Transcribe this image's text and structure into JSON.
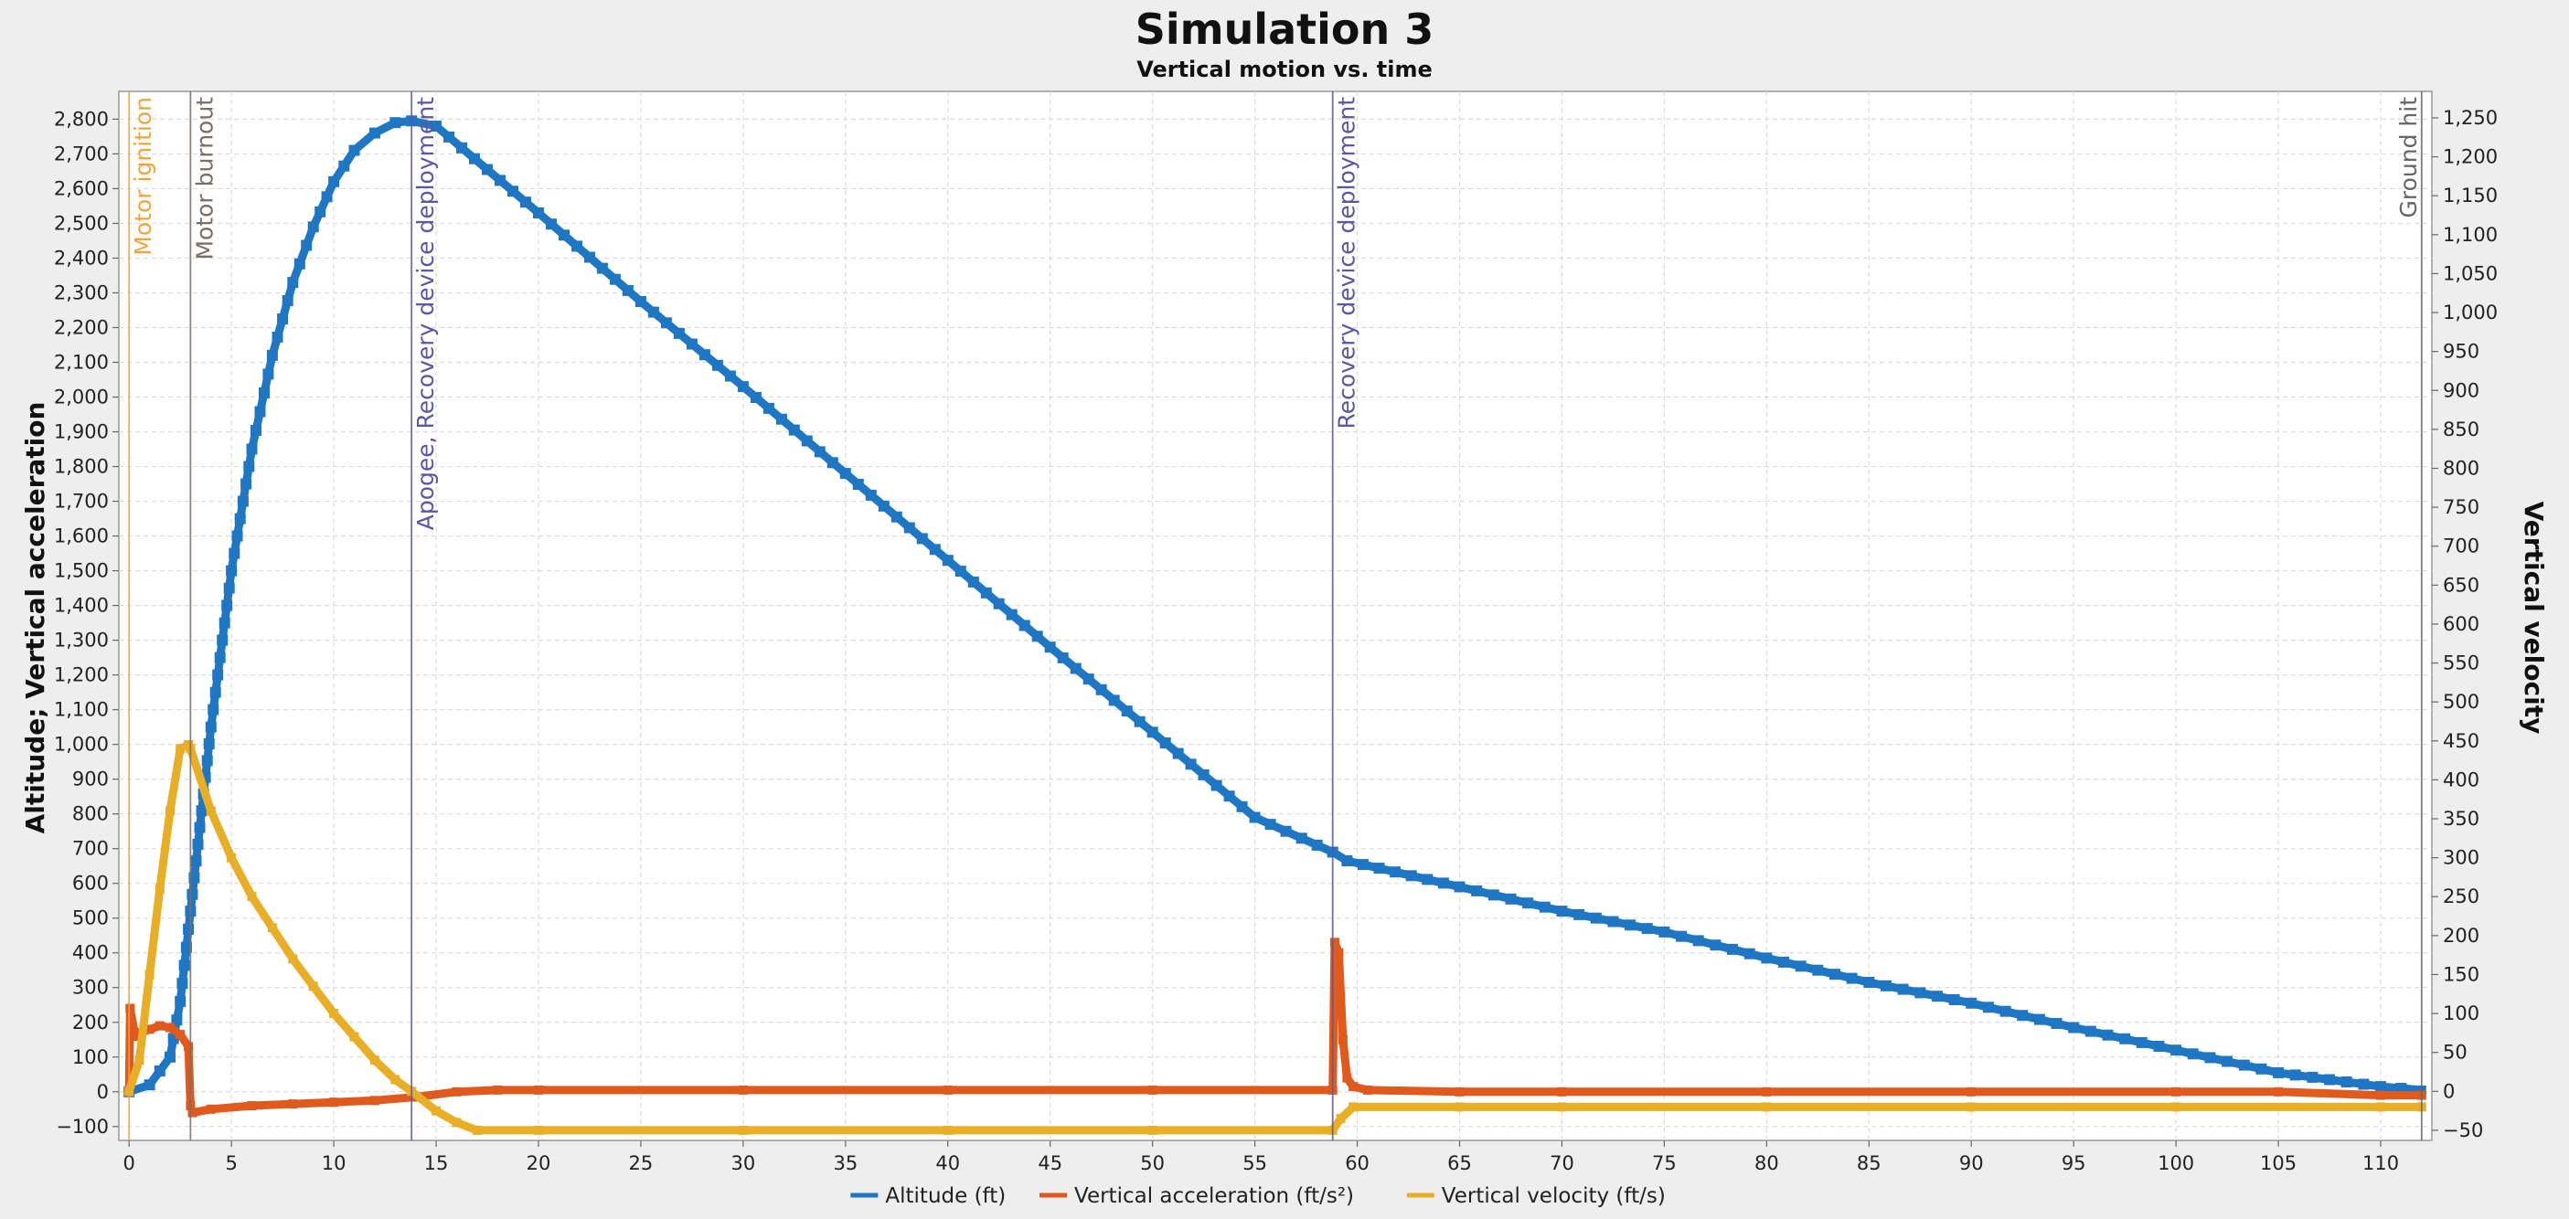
{
  "chart_data": {
    "type": "line",
    "title": "Simulation 3",
    "subtitle": "Vertical motion vs. time",
    "xlabel": "",
    "ylabel_left": "Altitude; Vertical acceleration",
    "ylabel_right": "Vertical velocity",
    "xlim": [
      -0.5,
      112.5
    ],
    "ylim_left": [
      -140,
      2880
    ],
    "ylim_right": [
      -63,
      1284
    ],
    "x_ticks": [
      0,
      5,
      10,
      15,
      20,
      25,
      30,
      35,
      40,
      45,
      50,
      55,
      60,
      65,
      70,
      75,
      80,
      85,
      90,
      95,
      100,
      105,
      110
    ],
    "y_left_ticks": [
      -100,
      0,
      100,
      200,
      300,
      400,
      500,
      600,
      700,
      800,
      900,
      1000,
      1100,
      1200,
      1300,
      1400,
      1500,
      1600,
      1700,
      1800,
      1900,
      2000,
      2100,
      2200,
      2300,
      2400,
      2500,
      2600,
      2700,
      2800
    ],
    "y_right_ticks": [
      -50,
      0,
      50,
      100,
      150,
      200,
      250,
      300,
      350,
      400,
      450,
      500,
      550,
      600,
      650,
      700,
      750,
      800,
      850,
      900,
      950,
      1000,
      1050,
      1100,
      1150,
      1200,
      1250
    ],
    "grid": true,
    "legend_position": "bottom",
    "series": [
      {
        "name": "Altitude (ft)",
        "axis": "left",
        "color": "#1f77c4",
        "x": [
          0,
          1,
          2,
          2.5,
          3,
          4,
          5,
          6,
          7,
          8,
          9,
          10,
          11,
          12,
          13,
          13.8,
          15,
          20,
          25,
          30,
          35,
          40,
          45,
          50,
          55,
          58.8,
          59.5,
          65,
          70,
          75,
          80,
          85,
          90,
          95,
          100,
          105,
          110,
          112
        ],
        "y": [
          0,
          20,
          100,
          260,
          520,
          1050,
          1500,
          1850,
          2120,
          2330,
          2490,
          2620,
          2710,
          2760,
          2790,
          2795,
          2780,
          2530,
          2275,
          2030,
          1780,
          1530,
          1280,
          1035,
          790,
          690,
          665,
          590,
          520,
          460,
          385,
          315,
          255,
          185,
          120,
          55,
          15,
          5
        ]
      },
      {
        "name": "Vertical acceleration (ft/s²)",
        "axis": "left",
        "color": "#e05a1e",
        "x": [
          0,
          0.05,
          0.3,
          0.6,
          1,
          1.5,
          2,
          2.5,
          2.9,
          3,
          3.1,
          4,
          6,
          8,
          10,
          12,
          14,
          16,
          18,
          20,
          30,
          40,
          50,
          58.8,
          58.9,
          59.1,
          59.3,
          59.5,
          59.8,
          60.5,
          65,
          70,
          80,
          90,
          100,
          105,
          110,
          112
        ],
        "y": [
          0,
          240,
          160,
          170,
          180,
          190,
          185,
          165,
          130,
          -40,
          -60,
          -50,
          -40,
          -35,
          -30,
          -25,
          -15,
          0,
          5,
          5,
          5,
          5,
          5,
          5,
          430,
          400,
          150,
          40,
          15,
          5,
          0,
          0,
          0,
          0,
          0,
          0,
          -10,
          -10
        ]
      },
      {
        "name": "Vertical velocity (ft/s)",
        "axis": "right",
        "color": "#e8ae26",
        "x": [
          0,
          0.5,
          1,
          1.5,
          2,
          2.5,
          2.9,
          3,
          4,
          5,
          6,
          7,
          8,
          9,
          10,
          11,
          12,
          13,
          13.8,
          15,
          16,
          17,
          20,
          30,
          40,
          50,
          58.8,
          59.2,
          59.8,
          65,
          70,
          80,
          90,
          100,
          110,
          112
        ],
        "y": [
          0,
          40,
          150,
          260,
          360,
          440,
          445,
          440,
          360,
          300,
          250,
          210,
          170,
          135,
          100,
          70,
          40,
          15,
          0,
          -25,
          -40,
          -50,
          -50,
          -50,
          -50,
          -50,
          -50,
          -35,
          -20,
          -20,
          -20,
          -20,
          -20,
          -20,
          -20,
          -20
        ]
      }
    ],
    "annotations": [
      {
        "label": "Motor ignition",
        "x": 0,
        "color": "#f2a43c"
      },
      {
        "label": "Motor burnout",
        "x": 3,
        "color": "#7b6e66"
      },
      {
        "label": "Apogee, Recovery device deployment",
        "x": 13.8,
        "color": "#5a56a8"
      },
      {
        "label": "Recovery device deployment",
        "x": 58.8,
        "color": "#5a56a8"
      },
      {
        "label": "Ground hit",
        "x": 112,
        "color": "#666666"
      }
    ]
  }
}
